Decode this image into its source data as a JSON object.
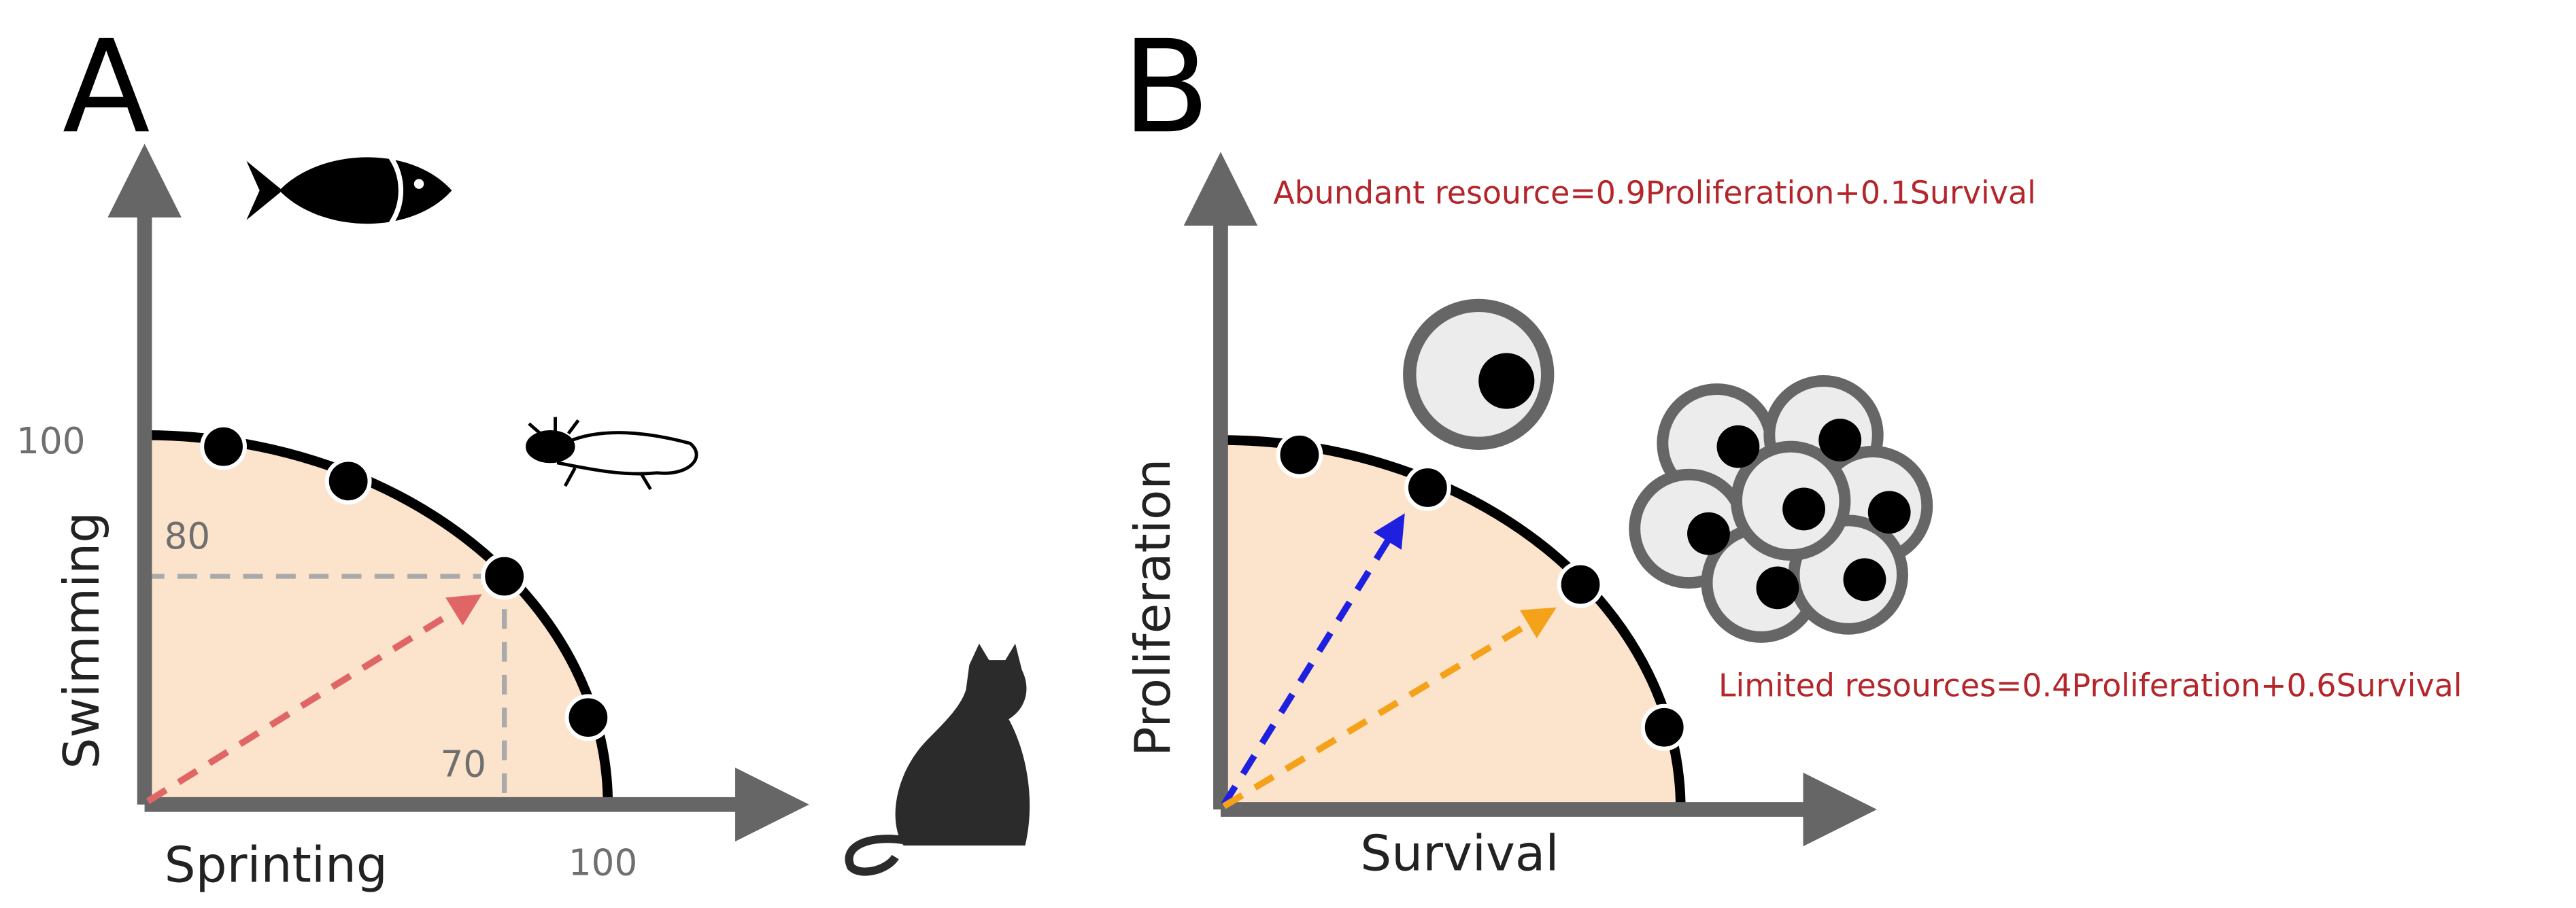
{
  "panel_a": {
    "label": "A",
    "y_axis_label": "Swimming",
    "x_axis_label": "Sprinting",
    "y_max_label": "100",
    "x_max_label": "100",
    "point_y_label": "80",
    "point_x_label": "70"
  },
  "panel_b": {
    "label": "B",
    "y_axis_label": "Proliferation",
    "x_axis_label": "Survival",
    "abundant_note": "Abundant resource=0.9Proliferation+0.1Survival",
    "limited_note": "Limited resources=0.4Proliferation+0.6Survival"
  }
}
